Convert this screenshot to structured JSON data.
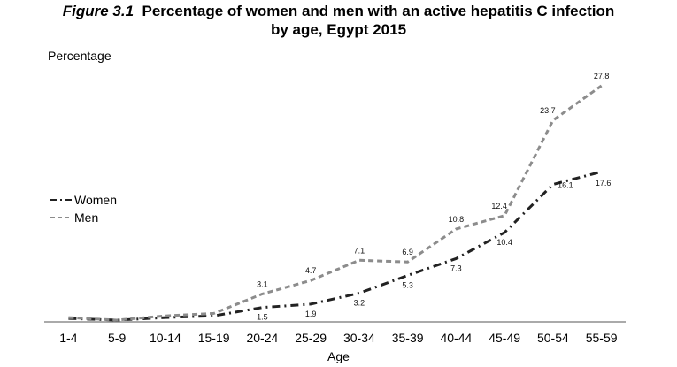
{
  "title": {
    "figure_label": "Figure 3.1",
    "line1": "Percentage of women and men with an active hepatitis C infection",
    "line2": "by age, Egypt 2015"
  },
  "chart_data": {
    "type": "line",
    "title": "Figure 3.1 Percentage of women and men with an active hepatitis C infection by age, Egypt 2015",
    "xlabel": "Age",
    "ylabel": "Percentage",
    "categories": [
      "1-4",
      "5-9",
      "10-14",
      "15-19",
      "20-24",
      "25-29",
      "30-34",
      "35-39",
      "40-44",
      "45-49",
      "50-54",
      "55-59"
    ],
    "ylim": [
      0,
      30
    ],
    "grid": false,
    "legend": "left",
    "series": [
      {
        "name": "Women",
        "values": [
          0.2,
          0.0,
          0.3,
          0.5,
          1.5,
          1.9,
          3.2,
          5.3,
          7.3,
          10.4,
          16.1,
          17.6
        ],
        "labels": [
          "",
          "",
          "",
          "",
          "1.5",
          "1.9",
          "3.2",
          "5.3",
          "7.3",
          "10.4",
          "16.1",
          "17.6"
        ],
        "color": "#222222",
        "dash": "dash-dot"
      },
      {
        "name": "Men",
        "values": [
          0.3,
          0.0,
          0.5,
          0.8,
          3.1,
          4.7,
          7.1,
          6.9,
          10.8,
          12.4,
          23.7,
          27.8
        ],
        "labels": [
          "",
          "",
          "",
          "",
          "3.1",
          "4.7",
          "7.1",
          "6.9",
          "10.8",
          "12.4",
          "23.7",
          "27.8"
        ],
        "color": "#8c8c8c",
        "dash": "dashed"
      }
    ]
  }
}
